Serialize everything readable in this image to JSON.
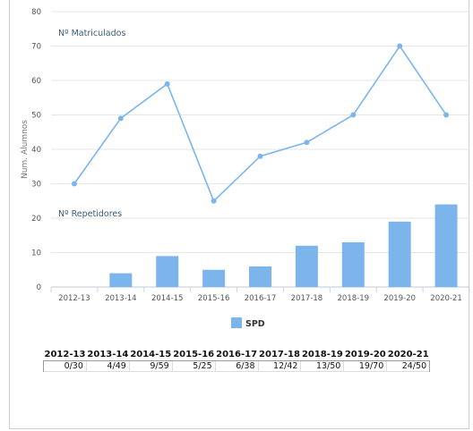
{
  "chart_data": {
    "type": "bar+line",
    "ylabel": "Num. Alumnos",
    "ylim": [
      0,
      80
    ],
    "yticks": [
      0,
      10,
      20,
      30,
      40,
      50,
      60,
      70,
      80
    ],
    "categories": [
      "2012-13",
      "2013-14",
      "2014-15",
      "2015-16",
      "2016-17",
      "2017-18",
      "2018-19",
      "2019-20",
      "2020-21"
    ],
    "annotations": [
      "Nº Matriculados",
      "Nº Repetidores"
    ],
    "line_series": {
      "name": "",
      "values": [
        30,
        49,
        59,
        25,
        38,
        42,
        50,
        70,
        50
      ],
      "color": "#7cb5ec"
    },
    "bar_series": {
      "name": "SPD",
      "values": [
        0,
        4,
        9,
        5,
        6,
        12,
        13,
        19,
        24
      ],
      "color": "#7cb5ec"
    },
    "legend": {
      "items": [
        "SPD"
      ],
      "position": "bottom-center"
    },
    "grid": true
  },
  "table": {
    "headers": [
      "2012-13",
      "2013-14",
      "2014-15",
      "2015-16",
      "2016-17",
      "2017-18",
      "2018-19",
      "2019-20",
      "2020-21"
    ],
    "cells": [
      "0/30",
      "4/49",
      "9/59",
      "5/25",
      "6/38",
      "12/42",
      "13/50",
      "19/70",
      "24/50"
    ]
  }
}
